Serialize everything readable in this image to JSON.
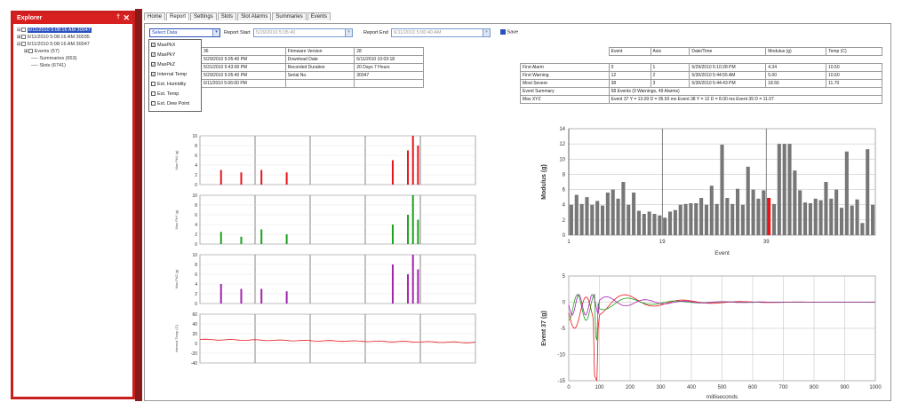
{
  "explorer": {
    "title": "Explorer",
    "pin": "†",
    "close": "✕",
    "items": [
      {
        "label": "6/11/2010 5:08:16 AM 30047",
        "selected": true
      },
      {
        "label": "6/11/2010 5:08:16 AM 30035"
      },
      {
        "label": "6/11/2010 5:08:16 AM 30047"
      },
      {
        "label": "Events (57)"
      },
      {
        "label": "Summaries (653)"
      },
      {
        "label": "Slots (6741)"
      }
    ]
  },
  "tabs": [
    "Home",
    "Report",
    "Settings",
    "Slots",
    "Slot Alarms",
    "Summaries",
    "Events"
  ],
  "toolbar": {
    "select_value": "Select Data",
    "report_start_label": "Report Start",
    "report_start_value": "5/29/2010 5:05:40",
    "report_end_label": "Report End",
    "report_end_value": "6/11/2010 5:06:40 AM",
    "save_label": "Save"
  },
  "dropdown": [
    {
      "label": "MaxPkX",
      "checked": true
    },
    {
      "label": "MaxPkY",
      "checked": true
    },
    {
      "label": "MaxPkZ",
      "checked": true
    },
    {
      "label": "Internal Temp",
      "checked": true
    },
    {
      "label": "Ext. Humidity",
      "checked": false
    },
    {
      "label": "Ext. Temp",
      "checked": false
    },
    {
      "label": "Ext. Dew Point",
      "checked": false
    }
  ],
  "info_table": [
    [
      "36",
      "Firmware Version",
      "28"
    ],
    [
      "5/29/2010 5:05:40 PM",
      "Download Date",
      "6/11/2010 10:03:18"
    ],
    [
      "5/31/2010 5:43:00 PM",
      "Recorded Duration",
      "20 Days 7 Hours"
    ],
    [
      "5/29/2010 5:05:40 PM",
      "Serial No.",
      "30047"
    ],
    [
      "6/11/2010 5:06:00 PM",
      "",
      ""
    ]
  ],
  "events_table": {
    "headers": [
      "",
      "Event",
      "Axis",
      "Date/Time",
      "Modulus (g)",
      "Temp (C)"
    ],
    "rows": [
      [
        "First Alarm",
        "0",
        "1",
        "5/29/2010 5:10:28 PM",
        "4.34",
        "10.50"
      ],
      [
        "First Warning",
        "12",
        "2",
        "5/30/2010 5:44:55 AM",
        "5.00",
        "10.60"
      ],
      [
        "Most Severe",
        "38",
        "3",
        "5/30/2010 5:44:43 PM",
        "18.56",
        "11.70"
      ]
    ],
    "summary_label": "Event Summary",
    "summary_value": "58 Events (9 Warnings, 49 Alarms)",
    "max_label": "Max XYZ",
    "max_value": "Event 37  Y = 13.09  D = 95.50 ms   Event 38  Y = 12  D = 8.00 ms   Event 39  D = 11.07"
  },
  "colors": {
    "red": "#e8151b",
    "green": "#1aa31a",
    "purple": "#a424b0",
    "gray": "#777777",
    "accent": "#c81e1e"
  },
  "left_charts": {
    "ylabels": [
      "Max PkX (g)",
      "Max PkY (g)",
      "Max PkZ (g)",
      "Internal Temp (C)"
    ],
    "ticks_small": [
      "10",
      "8",
      "6",
      "4",
      "2",
      "0"
    ],
    "ticks_temp": [
      "60",
      "40",
      "20",
      "0",
      "-20",
      "-40"
    ]
  },
  "chart_data": [
    {
      "type": "bar",
      "title": "",
      "xlabel": "Event",
      "ylabel": "Modulus (g)",
      "ylim": [
        0,
        14
      ],
      "yticks": [
        0,
        2,
        4,
        6,
        8,
        10,
        12,
        14
      ],
      "xticks": [
        1,
        19,
        39
      ],
      "highlight_index": 38,
      "values": [
        4.0,
        5.3,
        4.1,
        5.0,
        4.0,
        4.5,
        3.9,
        5.6,
        6.0,
        4.8,
        7.0,
        4.0,
        5.6,
        3.2,
        2.8,
        3.1,
        2.8,
        2.6,
        2.3,
        3.1,
        3.3,
        4.0,
        4.1,
        4.2,
        4.2,
        4.9,
        4.0,
        6.5,
        4.1,
        11.9,
        4.9,
        4.1,
        6.1,
        4.0,
        9.0,
        6.0,
        4.8,
        5.9,
        4.9,
        4.1,
        12.0,
        12.0,
        12.0,
        8.5,
        5.9,
        4.3,
        4.2,
        4.8,
        4.6,
        7.0,
        4.8,
        6.0,
        3.6,
        11.0,
        3.9,
        4.7,
        1.6,
        11.3,
        4.0
      ]
    },
    {
      "type": "line",
      "title": "",
      "xlabel": "milliseconds",
      "ylabel": "Event 37 (g)",
      "xlim": [
        0,
        1000
      ],
      "ylim": [
        -15,
        5
      ],
      "xticks": [
        0,
        100,
        200,
        300,
        400,
        500,
        600,
        700,
        800,
        900,
        1000
      ],
      "yticks": [
        5,
        0,
        -5,
        -10,
        -15
      ]
    }
  ]
}
